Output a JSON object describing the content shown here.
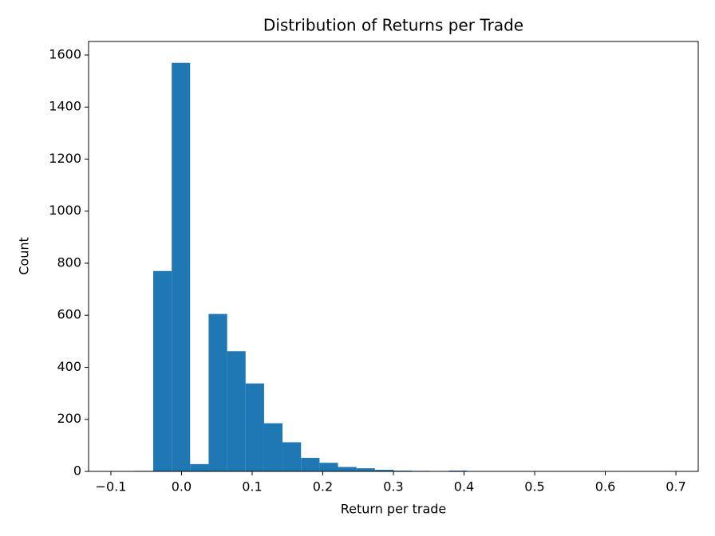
{
  "chart_data": {
    "type": "histogram",
    "title": "Distribution of Returns per Trade",
    "x_label": "Return per trade",
    "y_label": "Count",
    "color": "#1f77b4",
    "bins": [
      -0.0924,
      -0.0662,
      -0.0401,
      -0.0139,
      0.0122,
      0.0384,
      0.0646,
      0.0907,
      0.1169,
      0.143,
      0.1692,
      0.1954,
      0.2215,
      0.2477,
      0.2738,
      0.3,
      0.3262,
      0.3523,
      0.3785,
      0.4046,
      0.4308,
      0.457,
      0.4831,
      0.5093,
      0.5354,
      0.5616,
      0.5878,
      0.6139,
      0.6401,
      0.6662,
      0.6924
    ],
    "values": [
      1,
      2,
      770,
      1570,
      28,
      605,
      462,
      338,
      185,
      112,
      52,
      33,
      17,
      12,
      6,
      3,
      2,
      1,
      3,
      1,
      1,
      0,
      1,
      0,
      0,
      0,
      0,
      0,
      0,
      1
    ],
    "xlim": [
      -0.1316,
      0.7316
    ],
    "ylim": [
      0,
      1652
    ],
    "xticks": [
      {
        "value": -0.1,
        "label": "−0.1"
      },
      {
        "value": 0,
        "label": "0.0"
      },
      0.1,
      0.2,
      0.3,
      0.4,
      0.5,
      0.6,
      0.7
    ],
    "yticks": [
      0,
      200,
      400,
      600,
      800,
      1000,
      1200,
      1400,
      1600
    ]
  }
}
